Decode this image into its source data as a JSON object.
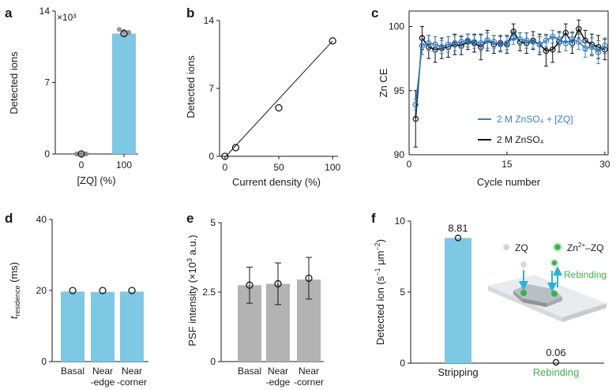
{
  "figure": {
    "colors": {
      "blue": "#7ec8e3",
      "blue_line": "#3a7fc1",
      "black": "#111111",
      "gray_bar": "#b3b3b3",
      "green": "#3cb24a",
      "point_gray": "#888888"
    }
  },
  "chart_data": [
    {
      "panel": "a",
      "type": "bar",
      "categories": [
        "0",
        "100"
      ],
      "values": [
        0,
        11.8
      ],
      "individual_points": {
        "0": [
          0,
          0,
          0
        ],
        "100": [
          12.2,
          12.0,
          11.9
        ]
      },
      "xlabel": "[ZQ] (%)",
      "ylabel": "Detected ions",
      "ylim": [
        0,
        14
      ],
      "yticks": [
        "0",
        "7",
        "14"
      ],
      "multiplier_label": "×10³",
      "bar_color": "#7ec8e3"
    },
    {
      "panel": "b",
      "type": "scatter",
      "x": [
        0,
        10,
        50,
        100
      ],
      "y": [
        0,
        0.9,
        5.0,
        11.9
      ],
      "fit_line": {
        "x": [
          0,
          100
        ],
        "y": [
          -0.1,
          11.9
        ]
      },
      "xlabel": "Current density (%)",
      "ylabel": "Detected ions",
      "xlim": [
        -5,
        105
      ],
      "ylim": [
        0,
        14
      ],
      "xticks": [
        "0",
        "50",
        "100"
      ],
      "yticks": [
        "0",
        "7",
        "14"
      ]
    },
    {
      "panel": "c",
      "type": "line",
      "xlabel": "Cycle number",
      "ylabel": "Zn CE",
      "xlim": [
        0,
        30.5
      ],
      "ylim": [
        90,
        101.2
      ],
      "xticks": [
        "0",
        "15",
        "30"
      ],
      "yticks": [
        "90",
        "95",
        "100"
      ],
      "legend_position": "center-right",
      "series": [
        {
          "name": "2 M ZnSO₄ + [ZQ]",
          "color": "#3a7fc1",
          "x": [
            1,
            2,
            3,
            4,
            5,
            6,
            7,
            8,
            9,
            10,
            11,
            12,
            13,
            14,
            15,
            16,
            17,
            18,
            19,
            20,
            21,
            22,
            23,
            24,
            25,
            26,
            27,
            28,
            29,
            30
          ],
          "y": [
            93.9,
            98.5,
            98.7,
            98.6,
            98.4,
            98.6,
            98.7,
            98.8,
            98.9,
            98.8,
            98.7,
            98.9,
            98.8,
            98.6,
            98.7,
            99.1,
            99.0,
            98.9,
            98.8,
            98.6,
            98.9,
            99.2,
            99.0,
            98.7,
            99.0,
            98.8,
            98.3,
            98.4,
            98.0,
            98.5
          ],
          "err": [
            0.4,
            0.7,
            0.6,
            0.6,
            0.5,
            0.6,
            0.6,
            0.5,
            0.5,
            0.5,
            0.6,
            0.6,
            0.5,
            0.6,
            0.5,
            0.5,
            0.5,
            0.6,
            0.5,
            0.6,
            0.5,
            0.5,
            0.5,
            0.6,
            0.6,
            0.6,
            0.7,
            0.7,
            0.9,
            0.6
          ]
        },
        {
          "name": "2 M ZnSO₄",
          "color": "#111111",
          "x": [
            1,
            2,
            3,
            4,
            5,
            6,
            7,
            8,
            9,
            10,
            11,
            12,
            13,
            14,
            15,
            16,
            17,
            18,
            19,
            20,
            21,
            22,
            23,
            24,
            25,
            26,
            27,
            28,
            29,
            30
          ],
          "y": [
            92.8,
            99.1,
            98.4,
            98.2,
            98.3,
            98.4,
            98.6,
            98.5,
            98.8,
            98.7,
            98.4,
            98.9,
            98.6,
            98.7,
            98.6,
            99.6,
            98.8,
            98.7,
            98.9,
            98.6,
            98.1,
            98.2,
            98.8,
            99.5,
            98.7,
            99.8,
            98.9,
            98.6,
            98.4,
            98.2
          ],
          "err": [
            2.2,
            0.9,
            0.9,
            1.0,
            0.8,
            0.8,
            0.8,
            0.7,
            0.6,
            0.7,
            1.0,
            0.8,
            0.7,
            0.6,
            0.7,
            0.6,
            0.7,
            0.8,
            0.7,
            0.8,
            1.2,
            1.0,
            0.8,
            0.7,
            0.8,
            0.7,
            0.8,
            0.8,
            0.9,
            0.8
          ]
        }
      ]
    },
    {
      "panel": "d",
      "type": "bar",
      "categories": [
        [
          "Basal"
        ],
        [
          "Near",
          "-edge"
        ],
        [
          "Near",
          "-corner"
        ]
      ],
      "values": [
        19.7,
        19.6,
        19.7
      ],
      "points": [
        20.0,
        20.0,
        20.0
      ],
      "ylabel_main": "t",
      "ylabel_sub": "residence",
      "ylabel_unit": " (ms)",
      "ylim": [
        0,
        40
      ],
      "yticks": [
        "0",
        "20",
        "40"
      ],
      "bar_color": "#7ec8e3"
    },
    {
      "panel": "e",
      "type": "bar",
      "categories": [
        [
          "Basal"
        ],
        [
          "Near",
          "-edge"
        ],
        [
          "Near",
          "-corner"
        ]
      ],
      "values": [
        2.75,
        2.8,
        2.95
      ],
      "points": [
        2.75,
        2.8,
        3.0
      ],
      "err": [
        0.65,
        0.75,
        0.75
      ],
      "ylabel_main": "PSF intensity (×10",
      "ylabel_sup": "3",
      "ylabel_tail": " a.u.)",
      "ylim": [
        0,
        5
      ],
      "yticks": [
        "0",
        "2.5",
        "5"
      ],
      "bar_color": "#b3b3b3"
    },
    {
      "panel": "f",
      "type": "bar",
      "categories": [
        "Stripping",
        "Rebinding"
      ],
      "values": [
        8.81,
        0.06
      ],
      "value_labels": [
        "8.81",
        "0.06"
      ],
      "category_colors": [
        "#1a1a1a",
        "#3cb24a"
      ],
      "ylabel_main": "Detected ion (s",
      "ylabel_sup1": "−1",
      "ylabel_mid": " μm",
      "ylabel_sup2": "−2",
      "ylabel_tail": ")",
      "ylim": [
        0,
        10
      ],
      "yticks": [
        "0",
        "5",
        "10"
      ],
      "bar_color": "#7ec8e3",
      "inset_legend": [
        "ZQ",
        "Zn",
        "2+",
        "–ZQ"
      ],
      "inset_annotation": "Rebinding"
    }
  ],
  "panel_labels": [
    "a",
    "b",
    "c",
    "d",
    "e",
    "f"
  ]
}
